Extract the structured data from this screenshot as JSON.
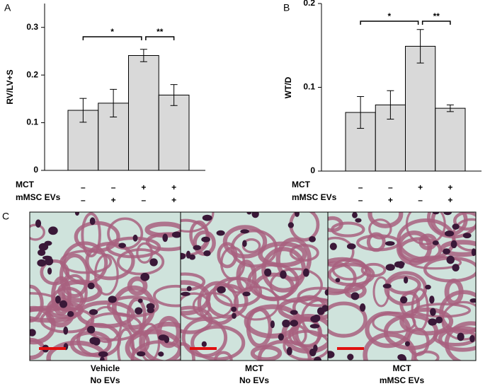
{
  "chart_data": [
    {
      "type": "bar",
      "panel_label": "A",
      "y_label": "RV/LV+S",
      "categories": [
        null,
        null,
        null,
        null
      ],
      "values": [
        0.126,
        0.141,
        0.241,
        0.158
      ],
      "errors": [
        0.025,
        0.029,
        0.013,
        0.022
      ],
      "color": "#d9d9d9",
      "ylim": [
        0,
        0.35
      ],
      "yticks": [
        0,
        0.1,
        0.2,
        0.3
      ],
      "annotations": [
        "*",
        "**"
      ],
      "conditions": [
        {
          "label": "MCT",
          "marks": [
            "–",
            "–",
            "+",
            "+"
          ]
        },
        {
          "label": "mMSC EVs",
          "marks": [
            "–",
            "+",
            "–",
            "+"
          ]
        }
      ]
    },
    {
      "type": "bar",
      "panel_label": "B",
      "y_label": "WT/D",
      "categories": [
        null,
        null,
        null,
        null
      ],
      "values": [
        0.07,
        0.079,
        0.149,
        0.075
      ],
      "errors": [
        0.019,
        0.017,
        0.02,
        0.004
      ],
      "color": "#d9d9d9",
      "ylim": [
        0,
        0.2
      ],
      "yticks": [
        0,
        0.1,
        0.2
      ],
      "annotations": [
        "*",
        "**"
      ],
      "conditions": [
        {
          "label": "MCT",
          "marks": [
            "–",
            "–",
            "+",
            "+"
          ]
        },
        {
          "label": "mMSC EVs",
          "marks": [
            "–",
            "+",
            "–",
            "+"
          ]
        }
      ]
    }
  ],
  "panel_c": {
    "label": "C",
    "images": [
      {
        "caption": [
          "Vehicle",
          "No EVs"
        ]
      },
      {
        "caption": [
          "MCT",
          "No EVs"
        ]
      },
      {
        "caption": [
          "MCT",
          "mMSC EVs"
        ]
      }
    ]
  }
}
